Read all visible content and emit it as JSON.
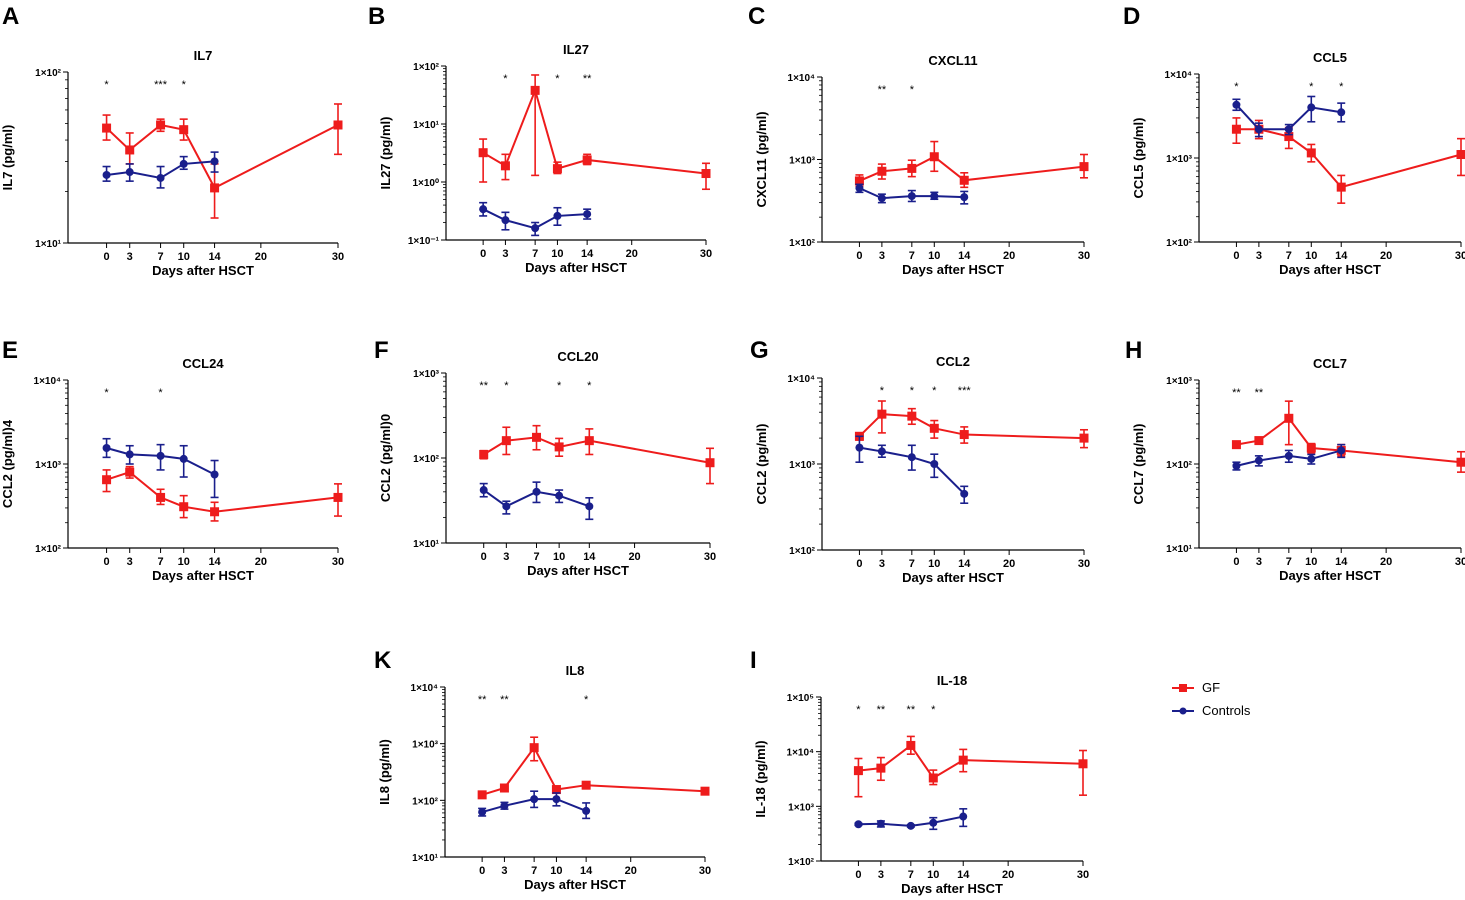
{
  "colors": {
    "GF": "#ee1c1c",
    "Controls": "#1a1f8c",
    "axis": "#000000"
  },
  "legend": [
    {
      "name": "GF",
      "color": "#ee1c1c",
      "marker": "square"
    },
    {
      "name": "Controls",
      "color": "#1a1f8c",
      "marker": "circle"
    }
  ],
  "chart_data": [
    {
      "panel": "A",
      "type": "line",
      "title": "IL7",
      "ylabel": "IL7 (pg/ml)",
      "xlabel": "Days after HSCT",
      "yscale": "log",
      "ylim": [
        10,
        100
      ],
      "ytick_labels": [
        "1×10¹",
        "1×10²"
      ],
      "xticks": [
        0,
        3,
        7,
        10,
        14,
        20,
        30
      ],
      "significance": [
        {
          "x": 0,
          "text": "*"
        },
        {
          "x": 7,
          "text": "***"
        },
        {
          "x": 10,
          "text": "*"
        }
      ],
      "series": [
        {
          "name": "GF",
          "x": [
            0,
            3,
            7,
            10,
            14,
            30
          ],
          "values": [
            47,
            35,
            49,
            46,
            21,
            49
          ],
          "err_low": [
            40,
            29,
            45,
            40,
            14,
            33
          ],
          "err_high": [
            56,
            44,
            53,
            53,
            29,
            65
          ]
        },
        {
          "name": "Controls",
          "x": [
            0,
            3,
            7,
            10,
            14
          ],
          "values": [
            25,
            26,
            24,
            29,
            30
          ],
          "err_low": [
            23,
            23,
            21,
            27,
            26
          ],
          "err_high": [
            28,
            29,
            28,
            32,
            34
          ]
        }
      ]
    },
    {
      "panel": "B",
      "type": "line",
      "title": "IL27",
      "ylabel": "IL27 (pg/ml)",
      "xlabel": "Days after HSCT",
      "yscale": "log",
      "ylim": [
        0.1,
        100
      ],
      "ytick_labels": [
        "1×10⁻¹",
        "1×10⁰",
        "1×10¹",
        "1×10²"
      ],
      "xticks": [
        0,
        3,
        7,
        10,
        14,
        20,
        30
      ],
      "significance": [
        {
          "x": 3,
          "text": "*"
        },
        {
          "x": 10,
          "text": "*"
        },
        {
          "x": 14,
          "text": "**"
        }
      ],
      "series": [
        {
          "name": "GF",
          "x": [
            0,
            3,
            7,
            10,
            14,
            30
          ],
          "values": [
            3.2,
            1.9,
            38,
            1.7,
            2.4,
            1.4
          ],
          "err_low": [
            1.0,
            1.1,
            1.3,
            1.4,
            2.0,
            0.75
          ],
          "err_high": [
            5.5,
            3.0,
            70,
            2.2,
            3.0,
            2.1
          ]
        },
        {
          "name": "Controls",
          "x": [
            0,
            3,
            7,
            10,
            14
          ],
          "values": [
            0.34,
            0.22,
            0.16,
            0.26,
            0.28
          ],
          "err_low": [
            0.26,
            0.15,
            0.12,
            0.18,
            0.23
          ],
          "err_high": [
            0.44,
            0.3,
            0.2,
            0.36,
            0.34
          ]
        }
      ]
    },
    {
      "panel": "C",
      "type": "line",
      "title": "CXCL11",
      "ylabel": "CXCL11 (pg/ml)",
      "xlabel": "Days after HSCT",
      "yscale": "log",
      "ylim": [
        100,
        10000
      ],
      "ytick_labels": [
        "1×10²",
        "1×10³",
        "1×10⁴"
      ],
      "xticks": [
        0,
        3,
        7,
        10,
        14,
        20,
        30
      ],
      "significance": [
        {
          "x": 3,
          "text": "**"
        },
        {
          "x": 7,
          "text": "*"
        }
      ],
      "series": [
        {
          "name": "GF",
          "x": [
            0,
            3,
            7,
            10,
            14,
            30
          ],
          "values": [
            550,
            720,
            780,
            1080,
            560,
            820
          ],
          "err_low": [
            470,
            580,
            620,
            720,
            460,
            600
          ],
          "err_high": [
            650,
            880,
            980,
            1650,
            690,
            1150
          ]
        },
        {
          "name": "Controls",
          "x": [
            0,
            3,
            7,
            10,
            14
          ],
          "values": [
            450,
            340,
            360,
            360,
            350
          ],
          "err_low": [
            400,
            300,
            310,
            330,
            290
          ],
          "err_high": [
            500,
            380,
            420,
            400,
            410
          ]
        }
      ]
    },
    {
      "panel": "D",
      "type": "line",
      "title": "CCL5",
      "ylabel": "CCL5 (pg/ml)",
      "xlabel": "Days after HSCT",
      "yscale": "log",
      "ylim": [
        100,
        10000
      ],
      "ytick_labels": [
        "1×10²",
        "1×10³",
        "1×10⁴"
      ],
      "xticks": [
        0,
        3,
        7,
        10,
        14,
        20,
        30
      ],
      "significance": [
        {
          "x": 0,
          "text": "*"
        },
        {
          "x": 10,
          "text": "*"
        },
        {
          "x": 14,
          "text": "*"
        }
      ],
      "series": [
        {
          "name": "GF",
          "x": [
            0,
            3,
            7,
            10,
            14,
            30
          ],
          "values": [
            2200,
            2200,
            1800,
            1150,
            450,
            1100
          ],
          "err_low": [
            1500,
            1700,
            1300,
            900,
            290,
            620
          ],
          "err_high": [
            3000,
            2800,
            2300,
            1450,
            620,
            1700
          ]
        },
        {
          "name": "Controls",
          "x": [
            0,
            3,
            7,
            10,
            14
          ],
          "values": [
            4300,
            2200,
            2200,
            4000,
            3500
          ],
          "err_low": [
            3700,
            1800,
            1900,
            2700,
            2700
          ],
          "err_high": [
            5000,
            2600,
            2500,
            5400,
            4500
          ]
        }
      ]
    },
    {
      "panel": "E",
      "type": "line",
      "title": "CCL24",
      "ylabel": "CCL2 (pg/ml)4",
      "xlabel": "Days after HSCT",
      "yscale": "log",
      "ylim": [
        100,
        10000
      ],
      "ytick_labels": [
        "1×10²",
        "1×10³",
        "1×10⁴"
      ],
      "xticks": [
        0,
        3,
        7,
        10,
        14,
        20,
        30
      ],
      "significance": [
        {
          "x": 0,
          "text": "*"
        },
        {
          "x": 7,
          "text": "*"
        }
      ],
      "series": [
        {
          "name": "GF",
          "x": [
            0,
            3,
            7,
            10,
            14,
            30
          ],
          "values": [
            650,
            800,
            400,
            310,
            270,
            400
          ],
          "err_low": [
            470,
            680,
            330,
            230,
            210,
            240
          ],
          "err_high": [
            850,
            930,
            500,
            420,
            350,
            580
          ]
        },
        {
          "name": "Controls",
          "x": [
            0,
            3,
            7,
            10,
            14
          ],
          "values": [
            1550,
            1300,
            1250,
            1150,
            750
          ],
          "err_low": [
            1200,
            1000,
            850,
            700,
            400
          ],
          "err_high": [
            2000,
            1650,
            1700,
            1650,
            1100
          ]
        }
      ]
    },
    {
      "panel": "F",
      "type": "line",
      "title": "CCL20",
      "ylabel": "CCL2 (pg/ml)0",
      "xlabel": "Days after HSCT",
      "yscale": "log",
      "ylim": [
        10,
        1000
      ],
      "ytick_labels": [
        "1×10¹",
        "1×10²",
        "1×10³"
      ],
      "xticks": [
        0,
        3,
        7,
        10,
        14,
        20,
        30
      ],
      "significance": [
        {
          "x": 0,
          "text": "**"
        },
        {
          "x": 3,
          "text": "*"
        },
        {
          "x": 10,
          "text": "*"
        },
        {
          "x": 14,
          "text": "*"
        }
      ],
      "series": [
        {
          "name": "GF",
          "x": [
            0,
            3,
            7,
            10,
            14,
            30
          ],
          "values": [
            110,
            160,
            175,
            135,
            160,
            88
          ],
          "err_low": [
            98,
            110,
            125,
            105,
            110,
            50
          ],
          "err_high": [
            122,
            230,
            240,
            170,
            220,
            130
          ]
        },
        {
          "name": "Controls",
          "x": [
            0,
            3,
            7,
            10,
            14
          ],
          "values": [
            42,
            27,
            40,
            36,
            27
          ],
          "err_low": [
            35,
            22,
            30,
            30,
            19
          ],
          "err_high": [
            50,
            31,
            52,
            42,
            34
          ]
        }
      ]
    },
    {
      "panel": "G",
      "type": "line",
      "title": "CCL2",
      "ylabel": "CCL2 (pg/ml)",
      "xlabel": "Days after HSCT",
      "yscale": "log",
      "ylim": [
        100,
        10000
      ],
      "ytick_labels": [
        "1×10²",
        "1×10³",
        "1×10⁴"
      ],
      "xticks": [
        0,
        3,
        7,
        10,
        14,
        20,
        30
      ],
      "significance": [
        {
          "x": 3,
          "text": "*"
        },
        {
          "x": 7,
          "text": "*"
        },
        {
          "x": 10,
          "text": "*"
        },
        {
          "x": 14,
          "text": "***"
        }
      ],
      "series": [
        {
          "name": "GF",
          "x": [
            0,
            3,
            7,
            10,
            14,
            30
          ],
          "values": [
            2100,
            3800,
            3600,
            2600,
            2200,
            2000
          ],
          "err_low": [
            1900,
            2300,
            2900,
            2000,
            1750,
            1550
          ],
          "err_high": [
            2300,
            5400,
            4400,
            3200,
            2700,
            2500
          ]
        },
        {
          "name": "Controls",
          "x": [
            0,
            3,
            7,
            10,
            14
          ],
          "values": [
            1550,
            1400,
            1200,
            1000,
            450
          ],
          "err_low": [
            1050,
            1200,
            850,
            700,
            350
          ],
          "err_high": [
            2100,
            1650,
            1650,
            1300,
            550
          ]
        }
      ]
    },
    {
      "panel": "H",
      "type": "line",
      "title": "CCL7",
      "ylabel": "CCL7 (pg/ml)",
      "xlabel": "Days after HSCT",
      "yscale": "log",
      "ylim": [
        10,
        1000
      ],
      "ytick_labels": [
        "1×10¹",
        "1×10²",
        "1×10³"
      ],
      "xticks": [
        0,
        3,
        7,
        10,
        14,
        20,
        30
      ],
      "significance": [
        {
          "x": 0,
          "text": "**"
        },
        {
          "x": 3,
          "text": "**"
        }
      ],
      "series": [
        {
          "name": "GF",
          "x": [
            0,
            3,
            7,
            10,
            14,
            30
          ],
          "values": [
            170,
            190,
            350,
            155,
            145,
            105
          ],
          "err_low": [
            155,
            180,
            170,
            135,
            125,
            80
          ],
          "err_high": [
            185,
            200,
            560,
            175,
            170,
            140
          ]
        },
        {
          "name": "Controls",
          "x": [
            0,
            3,
            7,
            10,
            14
          ],
          "values": [
            95,
            110,
            125,
            115,
            145
          ],
          "err_low": [
            85,
            95,
            105,
            100,
            120
          ],
          "err_high": [
            105,
            125,
            145,
            130,
            170
          ]
        }
      ]
    },
    {
      "panel": "K",
      "type": "line",
      "title": "IL8",
      "ylabel": "IL8 (pg/ml)",
      "xlabel": "Days after HSCT",
      "yscale": "log",
      "ylim": [
        10,
        10000
      ],
      "ytick_labels": [
        "1×10¹",
        "1×10²",
        "1×10³",
        "1×10⁴"
      ],
      "xticks": [
        0,
        3,
        7,
        10,
        14,
        20,
        30
      ],
      "significance": [
        {
          "x": 0,
          "text": "**"
        },
        {
          "x": 3,
          "text": "**"
        },
        {
          "x": 14,
          "text": "*"
        }
      ],
      "series": [
        {
          "name": "GF",
          "x": [
            0,
            3,
            7,
            10,
            14,
            30
          ],
          "values": [
            125,
            165,
            850,
            155,
            185,
            145
          ],
          "err_low": [
            110,
            150,
            500,
            135,
            170,
            140
          ],
          "err_high": [
            140,
            180,
            1300,
            175,
            205,
            150
          ]
        },
        {
          "name": "Controls",
          "x": [
            0,
            3,
            7,
            10,
            14
          ],
          "values": [
            62,
            80,
            105,
            105,
            65
          ],
          "err_low": [
            53,
            70,
            75,
            80,
            48
          ],
          "err_high": [
            72,
            92,
            145,
            135,
            90
          ]
        }
      ]
    },
    {
      "panel": "I",
      "type": "line",
      "title": "IL-18",
      "ylabel": "IL-18 (pg/ml)",
      "xlabel": "Days after HSCT",
      "yscale": "log",
      "ylim": [
        100,
        100000
      ],
      "ytick_labels": [
        "1×10²",
        "1×10³",
        "1×10⁴",
        "1×10⁵"
      ],
      "xticks": [
        0,
        3,
        7,
        10,
        14,
        20,
        30
      ],
      "significance": [
        {
          "x": 0,
          "text": "*"
        },
        {
          "x": 3,
          "text": "**"
        },
        {
          "x": 7,
          "text": "**"
        },
        {
          "x": 10,
          "text": "*"
        }
      ],
      "series": [
        {
          "name": "GF",
          "x": [
            0,
            3,
            7,
            10,
            14,
            30
          ],
          "values": [
            4500,
            5000,
            13000,
            3300,
            7000,
            6000
          ],
          "err_low": [
            1500,
            3000,
            9000,
            2500,
            4300,
            1600
          ],
          "err_high": [
            7500,
            7800,
            19000,
            4600,
            11000,
            10500
          ]
        },
        {
          "name": "Controls",
          "x": [
            0,
            3,
            7,
            10,
            14
          ],
          "values": [
            470,
            480,
            440,
            500,
            650
          ],
          "err_low": [
            450,
            420,
            420,
            380,
            430
          ],
          "err_high": [
            490,
            540,
            460,
            620,
            900
          ]
        }
      ]
    }
  ]
}
